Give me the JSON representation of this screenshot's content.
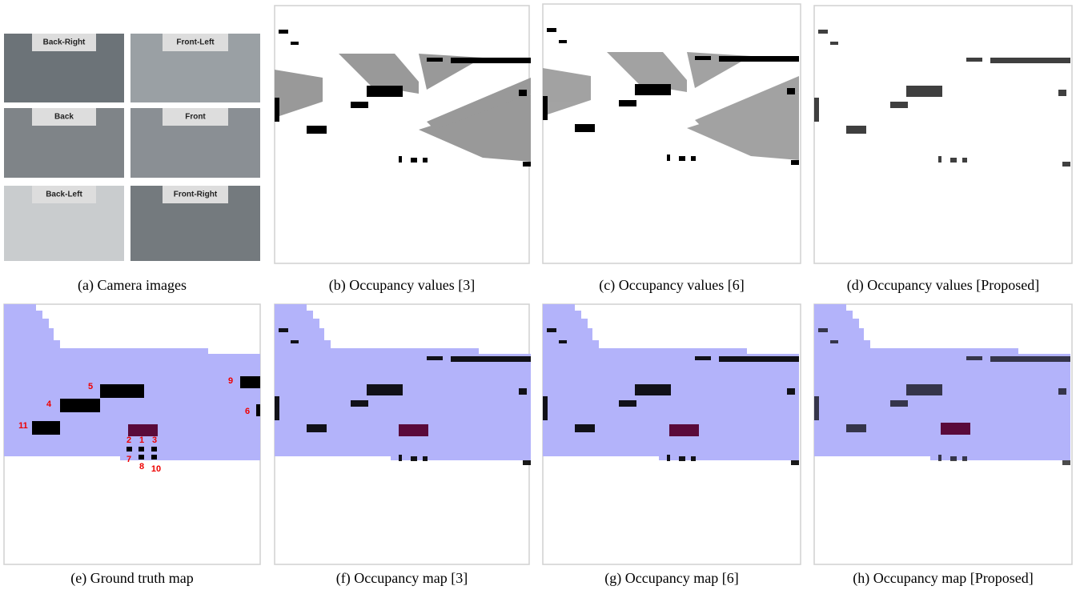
{
  "panels": [
    {
      "caption": "(a) Camera images"
    },
    {
      "caption": "(b) Occupancy values [3]"
    },
    {
      "caption": "(c) Occupancy values [6]"
    },
    {
      "caption": "(d) Occupancy values [Proposed]"
    },
    {
      "caption": "(e) Ground truth map"
    },
    {
      "caption": "(f) Occupancy map [3]"
    },
    {
      "caption": "(g) Occupancy map [6]"
    },
    {
      "caption": "(h) Occupancy map [Proposed]"
    }
  ],
  "camera_labels": [
    "Back-Right",
    "Front-Left",
    "Back",
    "Front",
    "Back-Left",
    "Front-Right"
  ],
  "gt_labels": [
    "5",
    "4",
    "11",
    "9",
    "6",
    "2",
    "1",
    "3",
    "7",
    "8",
    "10"
  ]
}
